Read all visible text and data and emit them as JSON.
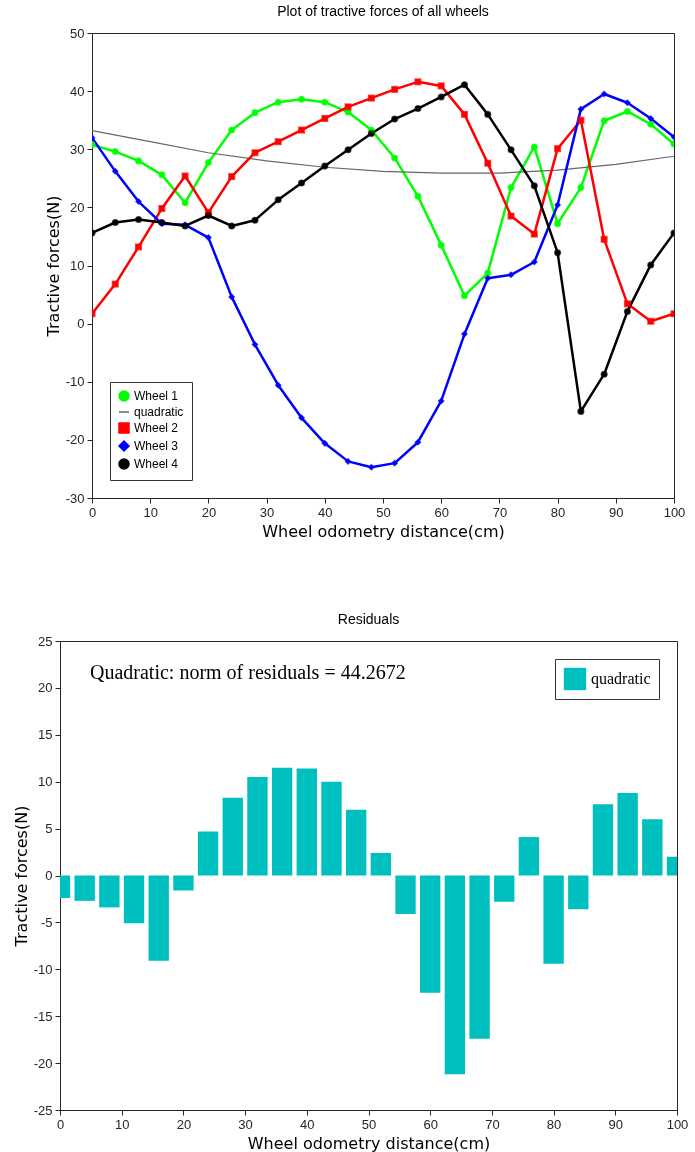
{
  "chart_data": [
    {
      "type": "line",
      "title": "Plot of tractive forces of all wheels",
      "xlabel": "Wheel odometry distance(cm)",
      "ylabel": "Tractive forces(N)",
      "x": [
        0,
        4,
        8,
        12,
        16,
        20,
        24,
        28,
        32,
        36,
        40,
        44,
        48,
        52,
        56,
        60,
        64,
        68,
        72,
        76,
        80,
        84,
        88,
        92,
        96,
        100
      ],
      "series": [
        {
          "name": "Wheel 1",
          "color": "#00ff00",
          "marker": "circle",
          "values": [
            30.8,
            29.6,
            28.0,
            25.6,
            20.8,
            27.7,
            33.3,
            36.3,
            38.1,
            38.6,
            38.1,
            36.4,
            33.3,
            28.5,
            21.9,
            13.5,
            4.8,
            8.7,
            23.4,
            30.4,
            17.2,
            23.4,
            34.9,
            36.5,
            34.3,
            30.9
          ]
        },
        {
          "name": "quadratic",
          "color": "#666666",
          "marker": "none",
          "type": "line",
          "x": [
            0,
            10,
            20,
            30,
            40,
            50,
            60,
            70,
            80,
            90,
            100
          ],
          "values": [
            33.2,
            31.3,
            29.4,
            28.0,
            26.9,
            26.2,
            25.9,
            25.9,
            26.4,
            27.4,
            28.8
          ]
        },
        {
          "name": "Wheel 2",
          "color": "#ff0000",
          "marker": "square",
          "values": [
            1.7,
            6.8,
            13.2,
            19.8,
            25.4,
            19.1,
            25.3,
            29.4,
            31.3,
            33.3,
            35.3,
            37.3,
            38.8,
            40.3,
            41.6,
            40.9,
            36.0,
            27.6,
            18.5,
            15.4,
            30.1,
            35.0,
            14.5,
            3.4,
            0.4,
            1.7
          ]
        },
        {
          "name": "Wheel 3",
          "color": "#0000ff",
          "marker": "diamond",
          "values": [
            32.0,
            26.2,
            21.0,
            17.2,
            17.0,
            14.8,
            4.6,
            -3.6,
            -10.6,
            -16.2,
            -20.6,
            -23.7,
            -24.7,
            -24.0,
            -20.4,
            -13.3,
            -1.8,
            7.8,
            8.4,
            10.6,
            20.4,
            36.9,
            39.5,
            38.0,
            35.3,
            32.1
          ]
        },
        {
          "name": "Wheel 4",
          "color": "#000000",
          "marker": "circle",
          "values": [
            15.6,
            17.4,
            17.9,
            17.4,
            16.8,
            18.6,
            16.8,
            17.8,
            21.3,
            24.2,
            27.1,
            29.9,
            32.7,
            35.2,
            37.0,
            39.0,
            41.1,
            36.0,
            29.9,
            23.7,
            12.2,
            -15.1,
            -8.7,
            2.1,
            10.1,
            15.6
          ]
        }
      ],
      "xlim": [
        0,
        100
      ],
      "xticks": [
        0,
        10,
        20,
        30,
        40,
        50,
        60,
        70,
        80,
        90,
        100
      ],
      "ylim": [
        -30,
        50
      ],
      "yticks": [
        -30,
        -20,
        -10,
        0,
        10,
        20,
        30,
        40,
        50
      ],
      "grid": false,
      "legend": "bottom left"
    },
    {
      "type": "bar",
      "title": "Residuals",
      "xlabel": "Wheel odometry distance(cm)",
      "ylabel": "Tractive forces(N)",
      "x": [
        0,
        4,
        8,
        12,
        16,
        20,
        24,
        28,
        32,
        36,
        40,
        44,
        48,
        52,
        56,
        60,
        64,
        68,
        72,
        76,
        80,
        84,
        88,
        92,
        96,
        100
      ],
      "series": [
        {
          "name": "quadratic",
          "color": "#00bfbf",
          "values": [
            -2.4,
            -2.7,
            -3.4,
            -5.1,
            -9.1,
            -1.6,
            4.7,
            8.3,
            10.5,
            11.5,
            11.4,
            10.0,
            7.0,
            2.4,
            -4.1,
            -12.5,
            -21.2,
            -17.4,
            -2.8,
            4.1,
            -9.4,
            -3.6,
            7.6,
            8.8,
            6.0,
            2.0
          ]
        }
      ],
      "xlim": [
        0,
        100
      ],
      "xticks": [
        0,
        10,
        20,
        30,
        40,
        50,
        60,
        70,
        80,
        90,
        100
      ],
      "ylim": [
        -25,
        25
      ],
      "yticks": [
        -25,
        -20,
        -15,
        -10,
        -5,
        0,
        5,
        10,
        15,
        20,
        25
      ],
      "grid": false,
      "legend": "top right",
      "annotations": [
        "Quadratic: norm of residuals = 44.2672"
      ]
    }
  ]
}
